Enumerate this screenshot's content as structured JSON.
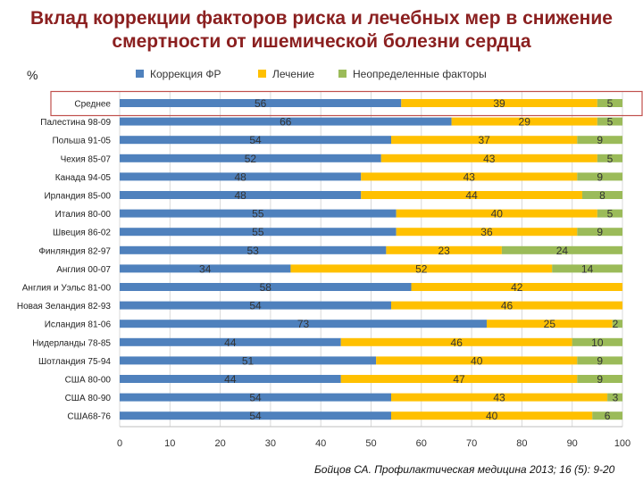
{
  "title_line1": "Вклад коррекции факторов риска и лечебных мер в снижение",
  "title_line2": "смертности от ишемической болезни сердца",
  "unit_label": "%",
  "source": "Бойцов СА. Профилактическая медицина 2013; 16 (5): 9-20",
  "colors": {
    "series1": "#4f81bd",
    "series2": "#ffc000",
    "series3": "#9bbb59",
    "highlight": "#c0504d"
  },
  "chart_data": {
    "type": "bar",
    "orientation": "horizontal",
    "stacked": true,
    "title": "Вклад коррекции факторов риска и лечебных мер в снижение смертности от ишемической болезни сердца",
    "xlim": [
      0,
      100
    ],
    "xticks": [
      0,
      10,
      20,
      30,
      40,
      50,
      60,
      70,
      80,
      90,
      100
    ],
    "legend_position": "top",
    "highlighted_category": "Среднее",
    "categories": [
      "Среднее",
      "Палестина 98-09",
      "Польша 91-05",
      "Чехия 85-07",
      "Канада 94-05",
      "Ирландия 85-00",
      "Италия 80-00",
      "Швеция 86-02",
      "Финляндия 82-97",
      "Англия 00-07",
      "Англия и Уэльс 81-00",
      "Новая Зеландия 82-93",
      "Исландия 81-06",
      "Нидерланды 78-85",
      "Шотландия 75-94",
      "США 80-00",
      "США 80-90",
      "США68-76"
    ],
    "series": [
      {
        "name": "Коррекция ФР",
        "values": [
          56,
          66,
          54,
          52,
          48,
          48,
          55,
          55,
          53,
          34,
          58,
          54,
          73,
          44,
          51,
          44,
          54,
          54
        ]
      },
      {
        "name": "Лечение",
        "values": [
          39,
          29,
          37,
          43,
          43,
          44,
          40,
          36,
          23,
          52,
          42,
          46,
          25,
          46,
          40,
          47,
          43,
          40
        ]
      },
      {
        "name": "Неопределенные факторы",
        "values": [
          5,
          5,
          9,
          5,
          9,
          8,
          5,
          9,
          24,
          14,
          0,
          0,
          2,
          10,
          9,
          9,
          3,
          6
        ]
      }
    ],
    "label_values": [
      [
        56,
        39,
        5
      ],
      [
        66,
        29,
        5
      ],
      [
        54,
        37,
        9
      ],
      [
        52,
        43,
        5
      ],
      [
        48,
        43,
        9
      ],
      [
        48,
        44,
        8
      ],
      [
        55,
        40,
        5
      ],
      [
        55,
        36,
        9
      ],
      [
        53,
        23,
        24
      ],
      [
        34,
        52,
        14
      ],
      [
        58,
        42,
        null
      ],
      [
        54,
        46,
        null
      ],
      [
        73,
        25,
        2
      ],
      [
        44,
        46,
        10
      ],
      [
        51,
        40,
        9
      ],
      [
        44,
        47,
        9
      ],
      [
        54,
        43,
        3
      ],
      [
        54,
        40,
        6
      ]
    ]
  }
}
